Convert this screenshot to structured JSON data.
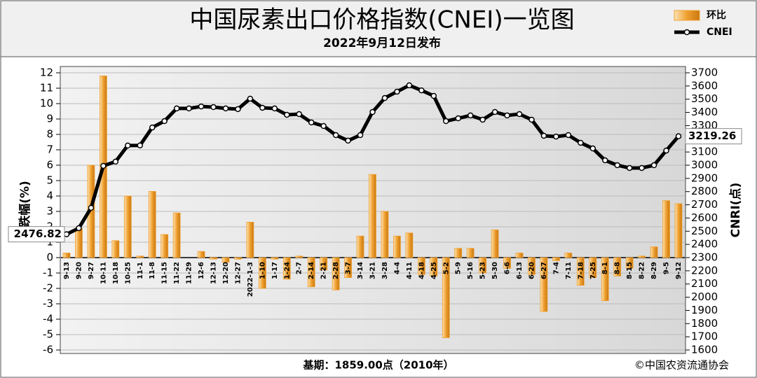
{
  "chart_data": {
    "type": "combo",
    "title": "中国尿素出口价格指数(CNEI)一览图",
    "subtitle": "2022年9月12日发布",
    "y_label": "涨跌幅(%)",
    "y2_label": "CNRI(点)",
    "note": "基期：1859.00点（2010年）",
    "source": "©中国农资流通协会",
    "categories": [
      "9-13",
      "9-20",
      "9-27",
      "10-11",
      "10-18",
      "10-25",
      "11-1",
      "11-8",
      "11-15",
      "11-22",
      "11-29",
      "12-6",
      "12-13",
      "12-20",
      "12-27",
      "2022-1-3",
      "1-10",
      "1-17",
      "1-24",
      "2-7",
      "2-14",
      "2-21",
      "2-28",
      "3-7",
      "3-14",
      "3-21",
      "3-28",
      "4-4",
      "4-11",
      "4-18",
      "4-25",
      "5-2",
      "5-9",
      "5-16",
      "5-23",
      "5-30",
      "6-6",
      "6-13",
      "6-20",
      "6-27",
      "7-4",
      "7-11",
      "7-18",
      "7-25",
      "8-1",
      "8-8",
      "8-15",
      "8-22",
      "8-29",
      "9-5",
      "9-12"
    ],
    "series": [
      {
        "name": "环比",
        "type": "bar",
        "color": "#f0a030",
        "values": [
          0.3,
          1.9,
          6.0,
          11.8,
          1.1,
          4.0,
          0.1,
          4.3,
          1.5,
          2.9,
          0.0,
          0.4,
          -0.1,
          -0.3,
          -0.1,
          2.3,
          -2.0,
          -0.1,
          -1.4,
          0.1,
          -1.9,
          -0.8,
          -2.1,
          -1.3,
          1.4,
          5.4,
          3.0,
          1.4,
          1.6,
          -1.1,
          -1.2,
          -5.2,
          0.6,
          0.6,
          -1.0,
          1.8,
          -0.7,
          0.3,
          -1.1,
          -3.5,
          -0.2,
          0.3,
          -1.8,
          -1.3,
          -2.8,
          -1.2,
          -0.7,
          0.1,
          0.7,
          3.7,
          3.5
        ]
      },
      {
        "name": "CNEI",
        "type": "line",
        "color": "#000000",
        "axis": "y2",
        "values": [
          2476.82,
          2523,
          2677,
          2995,
          3027,
          3149,
          3150,
          3286,
          3334,
          3430,
          3430,
          3445,
          3440,
          3430,
          3425,
          3504,
          3435,
          3430,
          3382,
          3387,
          3324,
          3297,
          3228,
          3186,
          3228,
          3403,
          3509,
          3557,
          3605,
          3567,
          3525,
          3334,
          3355,
          3377,
          3345,
          3403,
          3377,
          3387,
          3345,
          3223,
          3217,
          3228,
          3170,
          3127,
          3037,
          3000,
          2979,
          2979,
          3000,
          3111,
          3219.26
        ]
      }
    ],
    "ylim": [
      -6,
      12
    ],
    "yticks": [
      -6,
      -5,
      -4,
      -3,
      -2,
      -1,
      0,
      1,
      2,
      3,
      4,
      5,
      6,
      7,
      8,
      9,
      10,
      11,
      12
    ],
    "y2lim": [
      1600,
      3700
    ],
    "y2ticks": [
      1600,
      1700,
      1800,
      1900,
      2000,
      2100,
      2200,
      2300,
      2400,
      2500,
      2600,
      2700,
      2800,
      2900,
      3000,
      3100,
      3200,
      3300,
      3400,
      3500,
      3600,
      3700
    ],
    "grid": true,
    "legend": "top-right"
  }
}
